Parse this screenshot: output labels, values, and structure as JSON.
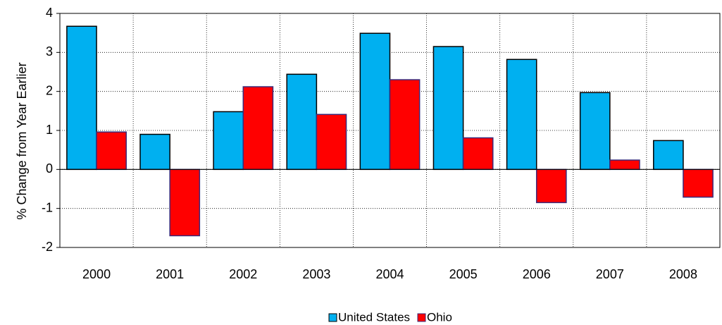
{
  "chart_data": {
    "type": "bar",
    "ylabel": "% Change from Year Earlier",
    "categories": [
      "2000",
      "2001",
      "2002",
      "2003",
      "2004",
      "2005",
      "2006",
      "2007",
      "2008"
    ],
    "series": [
      {
        "name": "United States",
        "color": "#00b0f0",
        "values": [
          3.67,
          0.9,
          1.48,
          2.44,
          3.49,
          3.15,
          2.82,
          1.97,
          0.74
        ]
      },
      {
        "name": "Ohio",
        "color": "#ff0000",
        "values": [
          0.96,
          -1.7,
          2.12,
          1.41,
          2.3,
          0.81,
          -0.85,
          0.24,
          -0.71
        ]
      }
    ],
    "ylim": [
      -2,
      4
    ],
    "yticks": [
      -2,
      -1,
      0,
      1,
      2,
      3,
      4
    ],
    "grid": true,
    "legend": "bottom"
  }
}
